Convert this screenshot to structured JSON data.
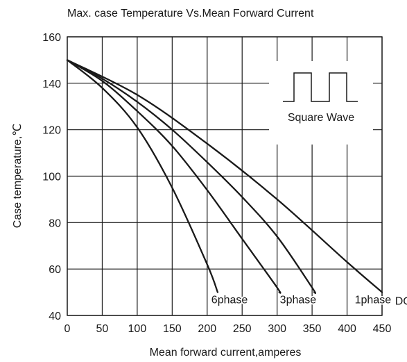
{
  "chart_data": {
    "type": "line",
    "title": "Max. case Temperature Vs.Mean Forward Current",
    "xlabel": "Mean forward current,amperes",
    "ylabel": "Case temperature,℃",
    "xlim": [
      0,
      450
    ],
    "ylim": [
      40,
      160
    ],
    "x_ticks": [
      0,
      50,
      100,
      150,
      200,
      250,
      300,
      350,
      400,
      450
    ],
    "y_ticks": [
      40,
      60,
      80,
      100,
      120,
      140,
      160
    ],
    "grid": true,
    "inset_label": "Square Wave",
    "series": [
      {
        "name": "6phase",
        "points": [
          [
            0,
            150
          ],
          [
            50,
            138
          ],
          [
            100,
            121
          ],
          [
            150,
            95
          ],
          [
            200,
            62
          ],
          [
            215,
            50
          ]
        ]
      },
      {
        "name": "3phase",
        "points": [
          [
            0,
            150
          ],
          [
            50,
            141
          ],
          [
            100,
            128
          ],
          [
            150,
            113
          ],
          [
            200,
            94
          ],
          [
            250,
            73
          ],
          [
            300,
            52
          ],
          [
            303,
            50
          ]
        ]
      },
      {
        "name": "1phase",
        "points": [
          [
            0,
            150
          ],
          [
            50,
            142
          ],
          [
            100,
            132
          ],
          [
            150,
            120
          ],
          [
            200,
            106
          ],
          [
            250,
            91
          ],
          [
            300,
            74
          ],
          [
            350,
            52
          ],
          [
            353,
            50
          ]
        ]
      },
      {
        "name": "DC",
        "points": [
          [
            0,
            150
          ],
          [
            100,
            135
          ],
          [
            200,
            114
          ],
          [
            300,
            90
          ],
          [
            400,
            63
          ],
          [
            450,
            50
          ]
        ]
      }
    ],
    "series_labels_pos": [
      [
        232,
        47
      ],
      [
        330,
        47
      ],
      [
        437,
        47
      ],
      [
        480,
        46.5
      ]
    ]
  }
}
